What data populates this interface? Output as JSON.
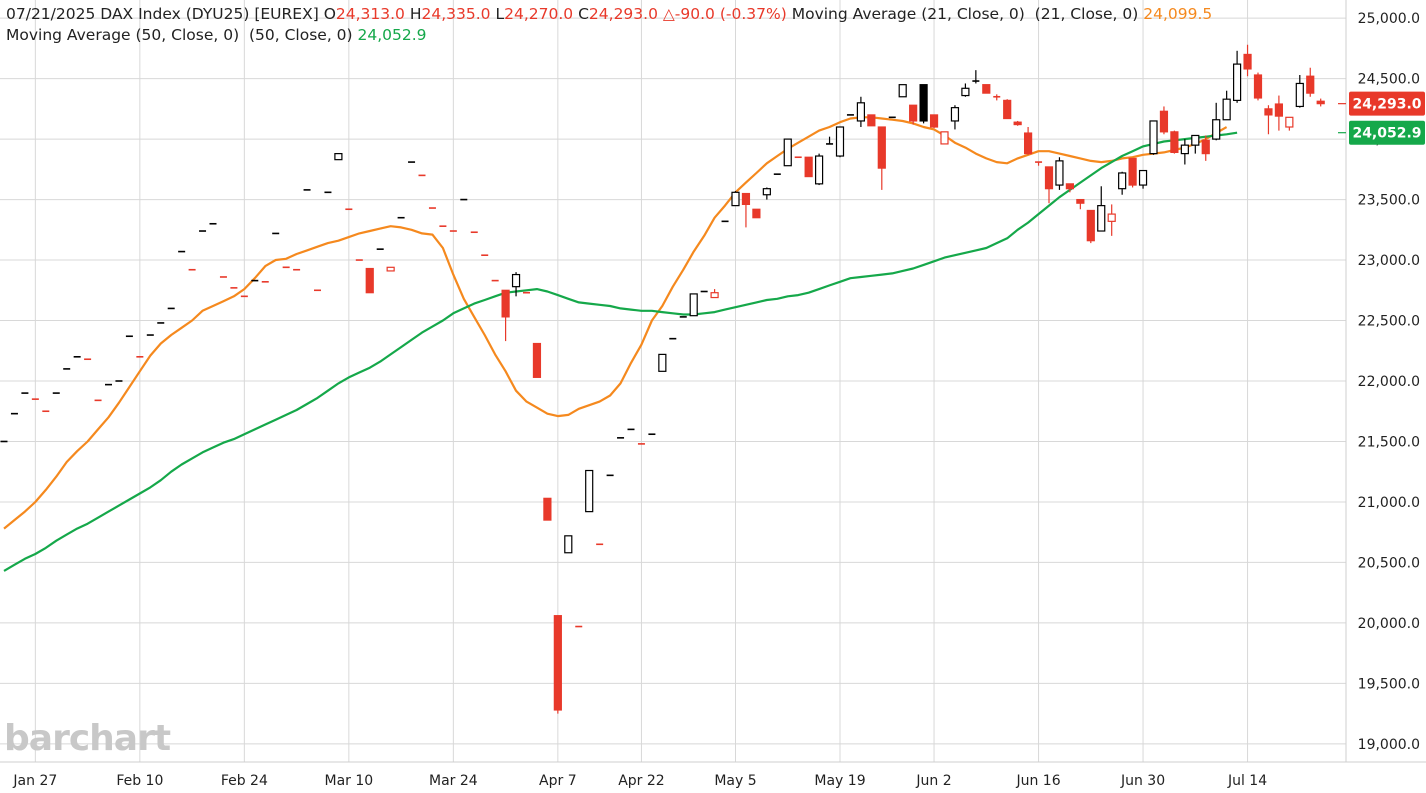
{
  "header": {
    "date": "07/21/2025",
    "symbol": "DAX Index (DYU25) [EUREX]",
    "o_label": "O",
    "o_value": "24,313.0",
    "h_label": "H",
    "h_value": "24,335.0",
    "l_label": "L",
    "l_value": "24,270.0",
    "c_label": "C",
    "c_value": "24,293.0",
    "change": "△-90.0 (-0.37%)",
    "ma21_label": "Moving Average (21, Close, 0)  (21, Close, 0)",
    "ma21_value": "24,099.5",
    "ma50_label": "Moving Average (50, Close, 0)  (50, Close, 0)",
    "ma50_value": "24,052.9"
  },
  "watermark": "barchart",
  "colors": {
    "up": "#000000",
    "down": "#e8392a",
    "ma21": "#f5891e",
    "ma50": "#15a84a",
    "grid": "#d8d8d8",
    "text": "#222222",
    "last_price_badge": "#e8392a",
    "ma50_badge": "#15a84a"
  },
  "chart_data": {
    "type": "candlestick",
    "ylim": [
      18850,
      25150
    ],
    "y_ticks": [
      {
        "value": 19000,
        "label": "19,000.0"
      },
      {
        "value": 19500,
        "label": "19,500.0"
      },
      {
        "value": 20000,
        "label": "20,000.0"
      },
      {
        "value": 20500,
        "label": "20,500.0"
      },
      {
        "value": 21000,
        "label": "21,000.0"
      },
      {
        "value": 21500,
        "label": "21,500.0"
      },
      {
        "value": 22000,
        "label": "22,000.0"
      },
      {
        "value": 22500,
        "label": "22,500.0"
      },
      {
        "value": 23000,
        "label": "23,000.0"
      },
      {
        "value": 23500,
        "label": "23,500.0"
      },
      {
        "value": 24000,
        "label": "24,000.0"
      },
      {
        "value": 24500,
        "label": "24,500.0"
      },
      {
        "value": 25000,
        "label": "25,000.0"
      }
    ],
    "x_ticks": [
      {
        "index": 3,
        "label": "Jan 27"
      },
      {
        "index": 13,
        "label": "Feb 10"
      },
      {
        "index": 23,
        "label": "Feb 24"
      },
      {
        "index": 33,
        "label": "Mar 10"
      },
      {
        "index": 43,
        "label": "Mar 24"
      },
      {
        "index": 53,
        "label": "Apr 7"
      },
      {
        "index": 61,
        "label": "Apr 22"
      },
      {
        "index": 70,
        "label": "May 5"
      },
      {
        "index": 80,
        "label": "May 19"
      },
      {
        "index": 89,
        "label": "Jun 2"
      },
      {
        "index": 99,
        "label": "Jun 16"
      },
      {
        "index": 109,
        "label": "Jun 30"
      },
      {
        "index": 119,
        "label": "Jul 14"
      }
    ],
    "candles": [
      {
        "o": 21500,
        "h": 21500,
        "l": 21500,
        "c": 21500
      },
      {
        "o": 21730,
        "h": 21730,
        "l": 21730,
        "c": 21730
      },
      {
        "o": 21900,
        "h": 21900,
        "l": 21900,
        "c": 21900
      },
      {
        "o": 21850,
        "h": 21850,
        "l": 21850,
        "c": 21850
      },
      {
        "o": 21750,
        "h": 21750,
        "l": 21750,
        "c": 21750
      },
      {
        "o": 21900,
        "h": 21900,
        "l": 21900,
        "c": 21900
      },
      {
        "o": 22100,
        "h": 22100,
        "l": 22100,
        "c": 22100
      },
      {
        "o": 22200,
        "h": 22200,
        "l": 22200,
        "c": 22200
      },
      {
        "o": 22180,
        "h": 22180,
        "l": 22180,
        "c": 22180
      },
      {
        "o": 21840,
        "h": 21840,
        "l": 21840,
        "c": 21840
      },
      {
        "o": 21970,
        "h": 21970,
        "l": 21970,
        "c": 21970
      },
      {
        "o": 22000,
        "h": 22000,
        "l": 22000,
        "c": 22000
      },
      {
        "o": 22370,
        "h": 22370,
        "l": 22370,
        "c": 22370
      },
      {
        "o": 22200,
        "h": 22200,
        "l": 22200,
        "c": 22200
      },
      {
        "o": 22380,
        "h": 22380,
        "l": 22380,
        "c": 22380
      },
      {
        "o": 22480,
        "h": 22480,
        "l": 22480,
        "c": 22480
      },
      {
        "o": 22600,
        "h": 22600,
        "l": 22600,
        "c": 22600
      },
      {
        "o": 23070,
        "h": 23070,
        "l": 23070,
        "c": 23070
      },
      {
        "o": 22920,
        "h": 22920,
        "l": 22920,
        "c": 22920
      },
      {
        "o": 23240,
        "h": 23240,
        "l": 23240,
        "c": 23240
      },
      {
        "o": 23300,
        "h": 23300,
        "l": 23300,
        "c": 23300
      },
      {
        "o": 22860,
        "h": 22860,
        "l": 22860,
        "c": 22860
      },
      {
        "o": 22770,
        "h": 22770,
        "l": 22770,
        "c": 22770
      },
      {
        "o": 22700,
        "h": 22700,
        "l": 22700,
        "c": 22700
      },
      {
        "o": 22830,
        "h": 22830,
        "l": 22830,
        "c": 22830
      },
      {
        "o": 22820,
        "h": 22820,
        "l": 22820,
        "c": 22820
      },
      {
        "o": 23220,
        "h": 23220,
        "l": 23220,
        "c": 23220
      },
      {
        "o": 22940,
        "h": 22940,
        "l": 22940,
        "c": 22940
      },
      {
        "o": 22920,
        "h": 22920,
        "l": 22920,
        "c": 22920
      },
      {
        "o": 23580,
        "h": 23580,
        "l": 23580,
        "c": 23580
      },
      {
        "o": 22750,
        "h": 22750,
        "l": 22750,
        "c": 22750
      },
      {
        "o": 23560,
        "h": 23560,
        "l": 23560,
        "c": 23560
      },
      {
        "o": 23830,
        "h": 23880,
        "l": 23830,
        "c": 23880
      },
      {
        "o": 23420,
        "h": 23420,
        "l": 23420,
        "c": 23420
      },
      {
        "o": 23000,
        "h": 23000,
        "l": 23000,
        "c": 23000
      },
      {
        "o": 22930,
        "h": 22930,
        "l": 22730,
        "c": 22730
      },
      {
        "o": 23090,
        "h": 23090,
        "l": 23090,
        "c": 23090
      },
      {
        "o": 22910,
        "h": 22940,
        "l": 22910,
        "c": 22940
      },
      {
        "o": 23350,
        "h": 23350,
        "l": 23350,
        "c": 23350
      },
      {
        "o": 23810,
        "h": 23810,
        "l": 23810,
        "c": 23810
      },
      {
        "o": 23700,
        "h": 23700,
        "l": 23700,
        "c": 23700
      },
      {
        "o": 23430,
        "h": 23430,
        "l": 23430,
        "c": 23430
      },
      {
        "o": 23280,
        "h": 23280,
        "l": 23280,
        "c": 23280
      },
      {
        "o": 23240,
        "h": 23240,
        "l": 23240,
        "c": 23240
      },
      {
        "o": 23500,
        "h": 23500,
        "l": 23500,
        "c": 23500
      },
      {
        "o": 23230,
        "h": 23230,
        "l": 23230,
        "c": 23230
      },
      {
        "o": 23040,
        "h": 23040,
        "l": 23040,
        "c": 23040
      },
      {
        "o": 22830,
        "h": 22830,
        "l": 22830,
        "c": 22830
      },
      {
        "o": 22750,
        "h": 22750,
        "l": 22330,
        "c": 22530
      },
      {
        "o": 22780,
        "h": 22900,
        "l": 22700,
        "c": 22880
      },
      {
        "o": 22730,
        "h": 22730,
        "l": 22730,
        "c": 22730
      },
      {
        "o": 22310,
        "h": 22310,
        "l": 22030,
        "c": 22030
      },
      {
        "o": 21030,
        "h": 21030,
        "l": 20850,
        "c": 20850
      },
      {
        "o": 20060,
        "h": 20060,
        "l": 19250,
        "c": 19280
      },
      {
        "o": 20580,
        "h": 20720,
        "l": 20580,
        "c": 20720
      },
      {
        "o": 19970,
        "h": 19970,
        "l": 19970,
        "c": 19970
      },
      {
        "o": 20920,
        "h": 21260,
        "l": 20920,
        "c": 21260
      },
      {
        "o": 20650,
        "h": 20650,
        "l": 20650,
        "c": 20650
      },
      {
        "o": 21220,
        "h": 21220,
        "l": 21220,
        "c": 21220
      },
      {
        "o": 21530,
        "h": 21530,
        "l": 21530,
        "c": 21530
      },
      {
        "o": 21600,
        "h": 21600,
        "l": 21600,
        "c": 21600
      },
      {
        "o": 21480,
        "h": 21480,
        "l": 21480,
        "c": 21480
      },
      {
        "o": 21560,
        "h": 21560,
        "l": 21560,
        "c": 21560
      },
      {
        "o": 22080,
        "h": 22220,
        "l": 22080,
        "c": 22220
      },
      {
        "o": 22350,
        "h": 22350,
        "l": 22350,
        "c": 22350
      },
      {
        "o": 22530,
        "h": 22530,
        "l": 22530,
        "c": 22530
      },
      {
        "o": 22540,
        "h": 22720,
        "l": 22540,
        "c": 22720
      },
      {
        "o": 22740,
        "h": 22740,
        "l": 22740,
        "c": 22740
      },
      {
        "o": 22690,
        "h": 22760,
        "l": 22690,
        "c": 22730
      },
      {
        "o": 23320,
        "h": 23320,
        "l": 23320,
        "c": 23320
      },
      {
        "o": 23450,
        "h": 23570,
        "l": 23450,
        "c": 23560
      },
      {
        "o": 23550,
        "h": 23550,
        "l": 23270,
        "c": 23460
      },
      {
        "o": 23420,
        "h": 23420,
        "l": 23350,
        "c": 23350
      },
      {
        "o": 23540,
        "h": 23600,
        "l": 23500,
        "c": 23590
      },
      {
        "o": 23710,
        "h": 23710,
        "l": 23710,
        "c": 23710
      },
      {
        "o": 23780,
        "h": 24000,
        "l": 23780,
        "c": 24000
      },
      {
        "o": 23850,
        "h": 23850,
        "l": 23850,
        "c": 23850
      },
      {
        "o": 23850,
        "h": 23850,
        "l": 23690,
        "c": 23690
      },
      {
        "o": 23630,
        "h": 23880,
        "l": 23620,
        "c": 23860
      },
      {
        "o": 23960,
        "h": 24020,
        "l": 23960,
        "c": 23960
      },
      {
        "o": 23860,
        "h": 24100,
        "l": 23850,
        "c": 24100
      },
      {
        "o": 24200,
        "h": 24200,
        "l": 24200,
        "c": 24200
      },
      {
        "o": 24150,
        "h": 24350,
        "l": 24100,
        "c": 24300
      },
      {
        "o": 24200,
        "h": 24200,
        "l": 24110,
        "c": 24110
      },
      {
        "o": 24100,
        "h": 24100,
        "l": 23580,
        "c": 23760
      },
      {
        "o": 24180,
        "h": 24180,
        "l": 24180,
        "c": 24180
      },
      {
        "o": 24350,
        "h": 24450,
        "l": 24350,
        "c": 24450
      },
      {
        "o": 24280,
        "h": 24280,
        "l": 24120,
        "c": 24150
      },
      {
        "o": 24450,
        "h": 24450,
        "l": 24130,
        "c": 24150
      },
      {
        "o": 24200,
        "h": 24200,
        "l": 24090,
        "c": 24100
      },
      {
        "o": 23960,
        "h": 24060,
        "l": 23960,
        "c": 24060
      },
      {
        "o": 24150,
        "h": 24280,
        "l": 24080,
        "c": 24260
      },
      {
        "o": 24360,
        "h": 24460,
        "l": 24350,
        "c": 24420
      },
      {
        "o": 24480,
        "h": 24570,
        "l": 24460,
        "c": 24480
      },
      {
        "o": 24450,
        "h": 24450,
        "l": 24380,
        "c": 24380
      },
      {
        "o": 24350,
        "h": 24370,
        "l": 24320,
        "c": 24350
      },
      {
        "o": 24320,
        "h": 24330,
        "l": 24170,
        "c": 24170
      },
      {
        "o": 24140,
        "h": 24150,
        "l": 24110,
        "c": 24120
      },
      {
        "o": 24050,
        "h": 24100,
        "l": 23870,
        "c": 23880
      },
      {
        "o": 23810,
        "h": 23810,
        "l": 23780,
        "c": 23800
      },
      {
        "o": 23770,
        "h": 23770,
        "l": 23470,
        "c": 23590
      },
      {
        "o": 23620,
        "h": 23850,
        "l": 23580,
        "c": 23820
      },
      {
        "o": 23630,
        "h": 23630,
        "l": 23560,
        "c": 23590
      },
      {
        "o": 23500,
        "h": 23500,
        "l": 23420,
        "c": 23470
      },
      {
        "o": 23410,
        "h": 23410,
        "l": 23140,
        "c": 23160
      },
      {
        "o": 23240,
        "h": 23610,
        "l": 23240,
        "c": 23450
      },
      {
        "o": 23320,
        "h": 23460,
        "l": 23200,
        "c": 23380
      },
      {
        "o": 23590,
        "h": 23730,
        "l": 23540,
        "c": 23720
      },
      {
        "o": 23840,
        "h": 23840,
        "l": 23600,
        "c": 23620
      },
      {
        "o": 23620,
        "h": 23730,
        "l": 23590,
        "c": 23740
      },
      {
        "o": 23880,
        "h": 24150,
        "l": 23870,
        "c": 24150
      },
      {
        "o": 24230,
        "h": 24270,
        "l": 24040,
        "c": 24060
      },
      {
        "o": 24060,
        "h": 24070,
        "l": 23880,
        "c": 23890
      },
      {
        "o": 23880,
        "h": 24000,
        "l": 23790,
        "c": 23950
      },
      {
        "o": 23950,
        "h": 24030,
        "l": 23880,
        "c": 24030
      },
      {
        "o": 23990,
        "h": 24030,
        "l": 23820,
        "c": 23880
      },
      {
        "o": 24000,
        "h": 24300,
        "l": 23990,
        "c": 24160
      },
      {
        "o": 24160,
        "h": 24400,
        "l": 24160,
        "c": 24330
      },
      {
        "o": 24320,
        "h": 24730,
        "l": 24300,
        "c": 24620
      },
      {
        "o": 24700,
        "h": 24780,
        "l": 24520,
        "c": 24580
      },
      {
        "o": 24530,
        "h": 24550,
        "l": 24320,
        "c": 24340
      },
      {
        "o": 24250,
        "h": 24280,
        "l": 24040,
        "c": 24200
      },
      {
        "o": 24290,
        "h": 24360,
        "l": 24070,
        "c": 24190
      },
      {
        "o": 24100,
        "h": 24180,
        "l": 24070,
        "c": 24180
      },
      {
        "o": 24270,
        "h": 24530,
        "l": 24260,
        "c": 24460
      },
      {
        "o": 24520,
        "h": 24590,
        "l": 24350,
        "c": 24380
      },
      {
        "o": 24313,
        "h": 24335,
        "l": 24270,
        "c": 24293
      }
    ],
    "series": [
      {
        "name": "Moving Average (21, Close, 0)",
        "values": [
          20780,
          20850,
          20920,
          21000,
          21100,
          21210,
          21330,
          21420,
          21500,
          21600,
          21700,
          21820,
          21950,
          22080,
          22210,
          22310,
          22380,
          22440,
          22500,
          22580,
          22620,
          22660,
          22700,
          22760,
          22850,
          22950,
          23000,
          23010,
          23050,
          23080,
          23110,
          23140,
          23160,
          23190,
          23220,
          23240,
          23260,
          23280,
          23270,
          23250,
          23220,
          23210,
          23100,
          22880,
          22680,
          22530,
          22380,
          22220,
          22080,
          21920,
          21830,
          21780,
          21730,
          21710,
          21720,
          21770,
          21800,
          21830,
          21880,
          21980,
          22150,
          22300,
          22500,
          22620,
          22780,
          22920,
          23070,
          23200,
          23350,
          23450,
          23560,
          23640,
          23720,
          23800,
          23860,
          23920,
          23970,
          24020,
          24070,
          24100,
          24140,
          24170,
          24180,
          24180,
          24170,
          24160,
          24150,
          24130,
          24100,
          24080,
          24030,
          23970,
          23930,
          23880,
          23840,
          23810,
          23800,
          23840,
          23870,
          23900,
          23900,
          23880,
          23860,
          23840,
          23820,
          23810,
          23820,
          23840,
          23850,
          23870,
          23880,
          23890,
          23910,
          23930,
          23960,
          24000,
          24050,
          24099.5
        ]
      },
      {
        "name": "Moving Average (50, Close, 0)",
        "values": [
          20430,
          20480,
          20530,
          20570,
          20620,
          20680,
          20730,
          20780,
          20820,
          20870,
          20920,
          20970,
          21020,
          21070,
          21120,
          21180,
          21250,
          21310,
          21360,
          21410,
          21450,
          21490,
          21520,
          21560,
          21600,
          21640,
          21680,
          21720,
          21760,
          21810,
          21860,
          21920,
          21980,
          22030,
          22070,
          22110,
          22160,
          22220,
          22280,
          22340,
          22400,
          22450,
          22500,
          22560,
          22600,
          22640,
          22670,
          22700,
          22730,
          22740,
          22750,
          22760,
          22740,
          22710,
          22680,
          22650,
          22640,
          22630,
          22620,
          22600,
          22590,
          22580,
          22580,
          22570,
          22560,
          22550,
          22550,
          22560,
          22570,
          22590,
          22610,
          22630,
          22650,
          22670,
          22680,
          22700,
          22710,
          22730,
          22760,
          22790,
          22820,
          22850,
          22860,
          22870,
          22880,
          22890,
          22910,
          22930,
          22960,
          22990,
          23020,
          23040,
          23060,
          23080,
          23100,
          23140,
          23180,
          23250,
          23310,
          23380,
          23450,
          23520,
          23580,
          23640,
          23700,
          23760,
          23810,
          23860,
          23900,
          23940,
          23960,
          23980,
          23990,
          24000,
          24010,
          24020,
          24030,
          24040,
          24052.9
        ]
      }
    ],
    "last_price": {
      "value": 24293.0,
      "label": "24,293.0"
    },
    "ma50_last": {
      "value": 24052.9,
      "label": "24,052.9"
    }
  }
}
